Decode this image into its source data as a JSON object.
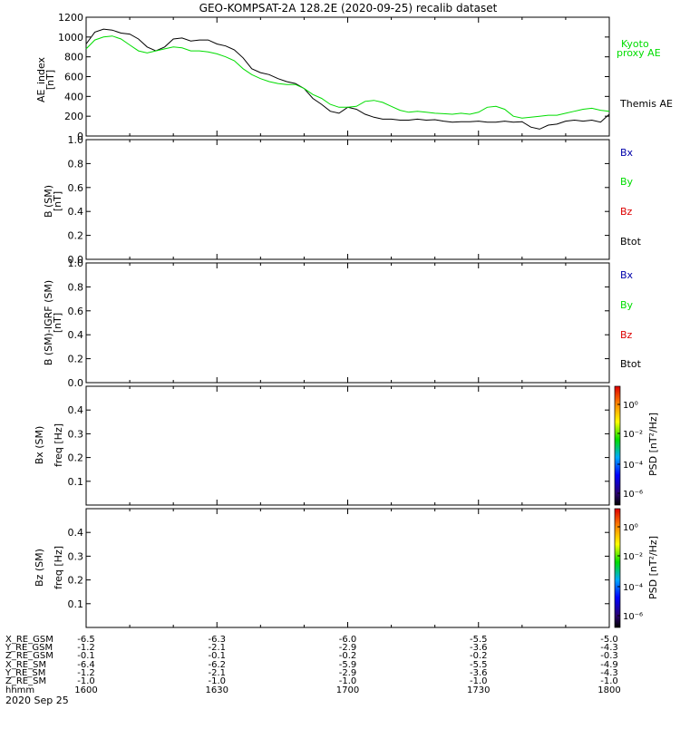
{
  "title": "GEO-KOMPSAT-2A 128.2E (2020-09-25) recalib dataset",
  "colors": {
    "green": "#00dd00",
    "blue": "#0000aa",
    "red": "#dd0000",
    "black": "#000000"
  },
  "panels": {
    "ae": {
      "ylabel_1": "AE_index",
      "ylabel_2": "[nT]"
    },
    "b": {
      "ylabel_1": "B (SM)",
      "ylabel_2": "[nT]"
    },
    "bd": {
      "ylabel_1": "B (SM)-IGRF (SM)",
      "ylabel_2": "[nT]"
    },
    "bxs": {
      "ylabel_1": "Bx (SM)",
      "ylabel_2": "freq [Hz]",
      "cbar_label": "PSD [nT²/Hz]"
    },
    "bzs": {
      "ylabel_1": "Bz (SM)",
      "ylabel_2": "freq [Hz]",
      "cbar_label": "PSD [nT²/Hz]"
    }
  },
  "legends": {
    "kyoto_1": "Kyoto",
    "kyoto_2": "proxy AE",
    "themis": "Themis AE",
    "bx": "Bx",
    "by": "By",
    "bz": "Bz",
    "btot": "Btot"
  },
  "chart_data": [
    {
      "type": "line",
      "title": "GEO-KOMPSAT-2A 128.2E (2020-09-25) recalib dataset",
      "ylabel": "AE_index [nT]",
      "ylim": [
        0,
        1200
      ],
      "yticks": [
        0,
        200,
        400,
        600,
        800,
        1000,
        1200
      ],
      "xlim": [
        0,
        120
      ],
      "xticks": [
        0,
        30,
        60,
        90,
        120
      ],
      "series": [
        {
          "name": "Themis AE",
          "color": "#000000",
          "x": [
            0,
            2,
            4,
            6,
            8,
            10,
            12,
            14,
            16,
            18,
            20,
            22,
            24,
            26,
            28,
            30,
            32,
            34,
            36,
            38,
            40,
            42,
            44,
            46,
            48,
            50,
            52,
            54,
            56,
            58,
            60,
            62,
            64,
            66,
            68,
            70,
            72,
            74,
            76,
            78,
            80,
            82,
            84,
            86,
            88,
            90,
            92,
            94,
            96,
            98,
            100,
            102,
            104,
            106,
            108,
            110,
            112,
            114,
            116,
            118,
            120
          ],
          "y": [
            930,
            1050,
            1080,
            1070,
            1040,
            1030,
            980,
            900,
            860,
            900,
            980,
            990,
            960,
            970,
            970,
            930,
            910,
            870,
            790,
            680,
            640,
            620,
            580,
            550,
            530,
            480,
            380,
            320,
            250,
            230,
            290,
            270,
            220,
            190,
            170,
            170,
            160,
            160,
            170,
            160,
            165,
            150,
            140,
            145,
            145,
            150,
            140,
            140,
            150,
            140,
            145,
            90,
            70,
            110,
            120,
            150,
            160,
            150,
            160,
            140,
            220
          ]
        },
        {
          "name": "Kyoto proxy AE",
          "color": "#00dd00",
          "x": [
            0,
            2,
            4,
            6,
            8,
            10,
            12,
            14,
            16,
            18,
            20,
            22,
            24,
            26,
            28,
            30,
            32,
            34,
            36,
            38,
            40,
            42,
            44,
            46,
            48,
            50,
            52,
            54,
            56,
            58,
            60,
            62,
            64,
            66,
            68,
            70,
            72,
            74,
            76,
            78,
            80,
            82,
            84,
            86,
            88,
            90,
            92,
            94,
            96,
            98,
            100,
            102,
            104,
            106,
            108,
            110,
            112,
            114,
            116,
            118,
            120
          ],
          "y": [
            880,
            970,
            1000,
            1010,
            980,
            920,
            860,
            840,
            860,
            880,
            900,
            890,
            860,
            860,
            850,
            830,
            800,
            760,
            680,
            620,
            580,
            550,
            530,
            520,
            520,
            480,
            420,
            380,
            320,
            290,
            290,
            300,
            350,
            360,
            340,
            300,
            260,
            240,
            250,
            240,
            230,
            225,
            220,
            230,
            220,
            240,
            290,
            300,
            270,
            200,
            180,
            190,
            200,
            210,
            210,
            230,
            250,
            270,
            280,
            260,
            250
          ]
        }
      ]
    },
    {
      "type": "line",
      "ylabel": "B (SM) [nT]",
      "ylim": [
        0,
        1
      ],
      "yticks": [
        0.0,
        0.2,
        0.4,
        0.6,
        0.8,
        1.0
      ],
      "series": []
    },
    {
      "type": "line",
      "ylabel": "B (SM)-IGRF (SM) [nT]",
      "ylim": [
        0,
        1
      ],
      "yticks": [
        0.0,
        0.2,
        0.4,
        0.6,
        0.8,
        1.0
      ],
      "series": []
    },
    {
      "type": "heatmap",
      "ylabel": "Bx (SM) freq [Hz]",
      "ylim": [
        0,
        0.5
      ],
      "yticks": [
        0.1,
        0.2,
        0.3,
        0.4
      ],
      "colorbar": {
        "label": "PSD [nT²/Hz]",
        "ticks": [
          "10⁰",
          "10⁻²",
          "10⁻⁴",
          "10⁻⁶"
        ]
      }
    },
    {
      "type": "heatmap",
      "ylabel": "Bz (SM) freq [Hz]",
      "ylim": [
        0,
        0.5
      ],
      "yticks": [
        0.1,
        0.2,
        0.3,
        0.4
      ],
      "colorbar": {
        "label": "PSD [nT²/Hz]",
        "ticks": [
          "10⁰",
          "10⁻²",
          "10⁻⁴",
          "10⁻⁶"
        ]
      }
    }
  ],
  "ephemeris": {
    "row_labels": [
      "X_RE_GSM",
      "Y_RE_GSM",
      "Z_RE_GSM",
      "X_RE_SM",
      "Y_RE_SM",
      "Z_RE_SM",
      "hhmm"
    ],
    "date": "2020 Sep 25",
    "columns": [
      [
        "-6.5",
        "-1.2",
        "-0.1",
        "-6.4",
        "-1.2",
        "-1.0",
        "1600"
      ],
      [
        "-6.3",
        "-2.1",
        "-0.1",
        "-6.2",
        "-2.1",
        "-1.0",
        "1630"
      ],
      [
        "-6.0",
        "-2.9",
        "-0.2",
        "-5.9",
        "-2.9",
        "-1.0",
        "1700"
      ],
      [
        "-5.5",
        "-3.6",
        "-0.2",
        "-5.5",
        "-3.6",
        "-1.0",
        "1730"
      ],
      [
        "-5.0",
        "-4.3",
        "-0.3",
        "-4.9",
        "-4.3",
        "-1.0",
        "1800"
      ]
    ]
  }
}
